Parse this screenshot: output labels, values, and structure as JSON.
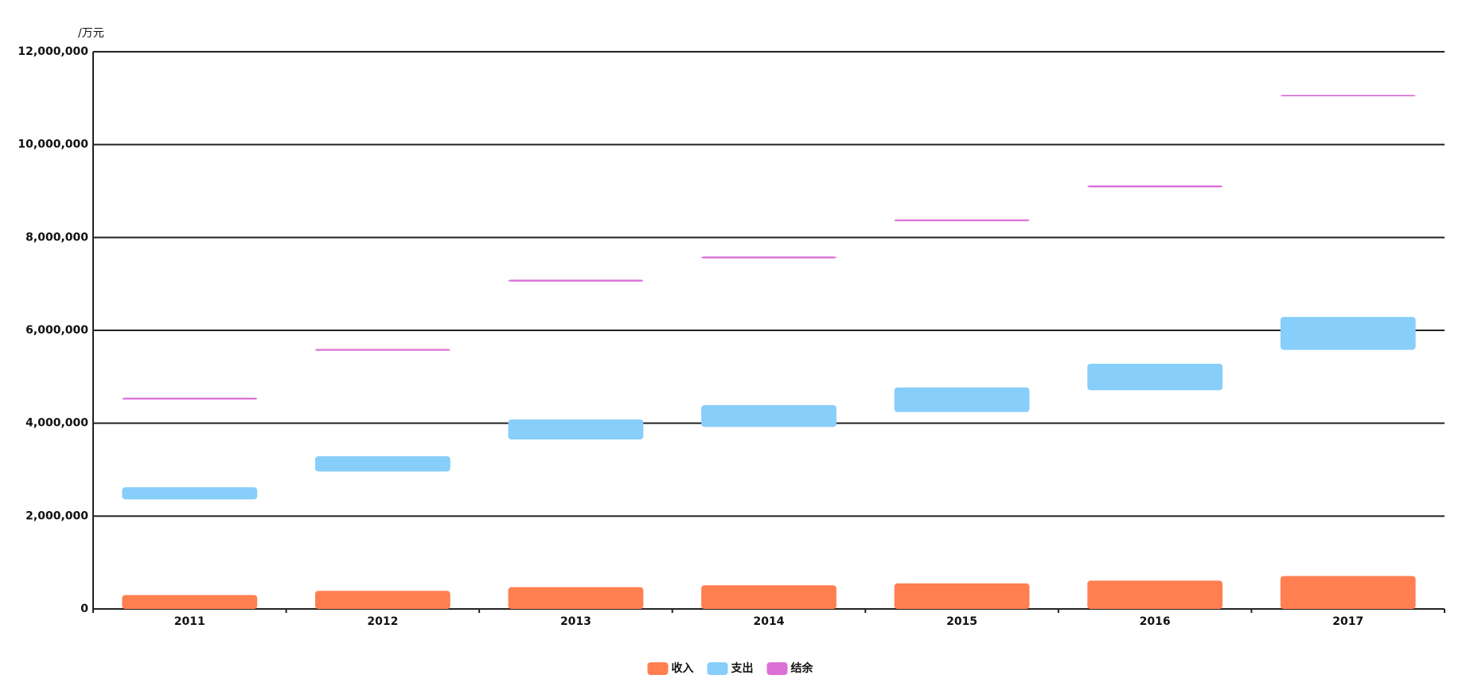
{
  "chart_data": {
    "type": "floating-bar",
    "y_label": "/万元",
    "categories": [
      "2011",
      "2012",
      "2013",
      "2014",
      "2015",
      "2016",
      "2017"
    ],
    "series": [
      {
        "name": "收入",
        "color": "#ff7f50",
        "low": [
          0,
          0,
          0,
          0,
          0,
          0,
          0
        ],
        "high": [
          300000,
          390000,
          470000,
          510000,
          550000,
          610000,
          710000
        ]
      },
      {
        "name": "支出",
        "color": "#87cefa",
        "low": [
          2360000,
          2960000,
          3650000,
          3920000,
          4240000,
          4710000,
          5580000
        ],
        "high": [
          2620000,
          3290000,
          4080000,
          4390000,
          4770000,
          5280000,
          6290000
        ]
      },
      {
        "name": "结余",
        "color": "#da70d6",
        "low": [
          4510000,
          5560000,
          7050000,
          7550000,
          8350000,
          9080000,
          11040000
        ],
        "high": [
          4550000,
          5600000,
          7090000,
          7590000,
          8390000,
          9120000,
          11070000
        ]
      }
    ],
    "ylim": [
      0,
      12000000
    ],
    "yticks": [
      {
        "value": 0,
        "label": "0"
      },
      {
        "value": 2000000,
        "label": "2,000,000"
      },
      {
        "value": 4000000,
        "label": "4,000,000"
      },
      {
        "value": 6000000,
        "label": "6,000,000"
      },
      {
        "value": 8000000,
        "label": "8,000,000"
      },
      {
        "value": 10000000,
        "label": "10,000,000"
      },
      {
        "value": 12000000,
        "label": "12,000,000"
      }
    ],
    "grid": true
  }
}
